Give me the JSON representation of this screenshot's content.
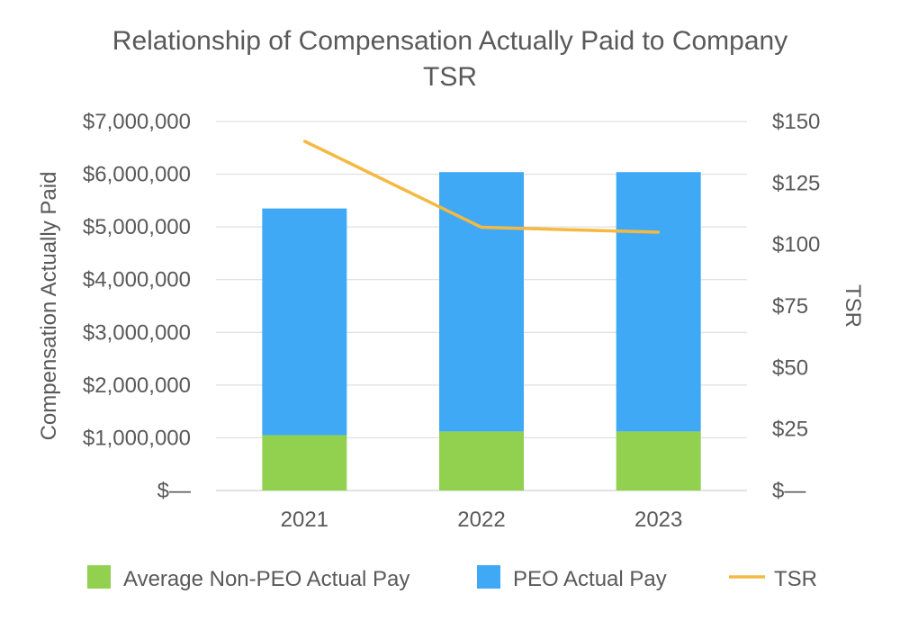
{
  "chart_data": {
    "type": "bar",
    "title_lines": [
      "Relationship of Compensation Actually Paid to Company",
      "TSR"
    ],
    "categories": [
      "2021",
      "2022",
      "2023"
    ],
    "series": [
      {
        "name": "Average Non-PEO Actual Pay",
        "kind": "bar",
        "axis": "left",
        "color": "#92D050",
        "values": [
          1050000,
          1120000,
          1120000
        ]
      },
      {
        "name": "PEO Actual Pay",
        "kind": "bar",
        "axis": "left",
        "color": "#3FA9F5",
        "values": [
          4300000,
          4920000,
          4920000
        ]
      },
      {
        "name": "TSR",
        "kind": "line",
        "axis": "right",
        "color": "#F4B942",
        "values": [
          142,
          107,
          105
        ]
      }
    ],
    "stacked": true,
    "ylabel": "Compensation Actually Paid",
    "y2label": "TSR",
    "ylim": [
      0,
      7000000
    ],
    "y2lim": [
      0,
      150
    ],
    "y_ticks": [
      "$—",
      "$1,000,000",
      "$2,000,000",
      "$3,000,000",
      "$4,000,000",
      "$5,000,000",
      "$6,000,000",
      "$7,000,000"
    ],
    "y2_ticks": [
      "$—",
      "$25",
      "$50",
      "$75",
      "$100",
      "$125",
      "$150"
    ],
    "grid": true,
    "legend_position": "bottom"
  }
}
